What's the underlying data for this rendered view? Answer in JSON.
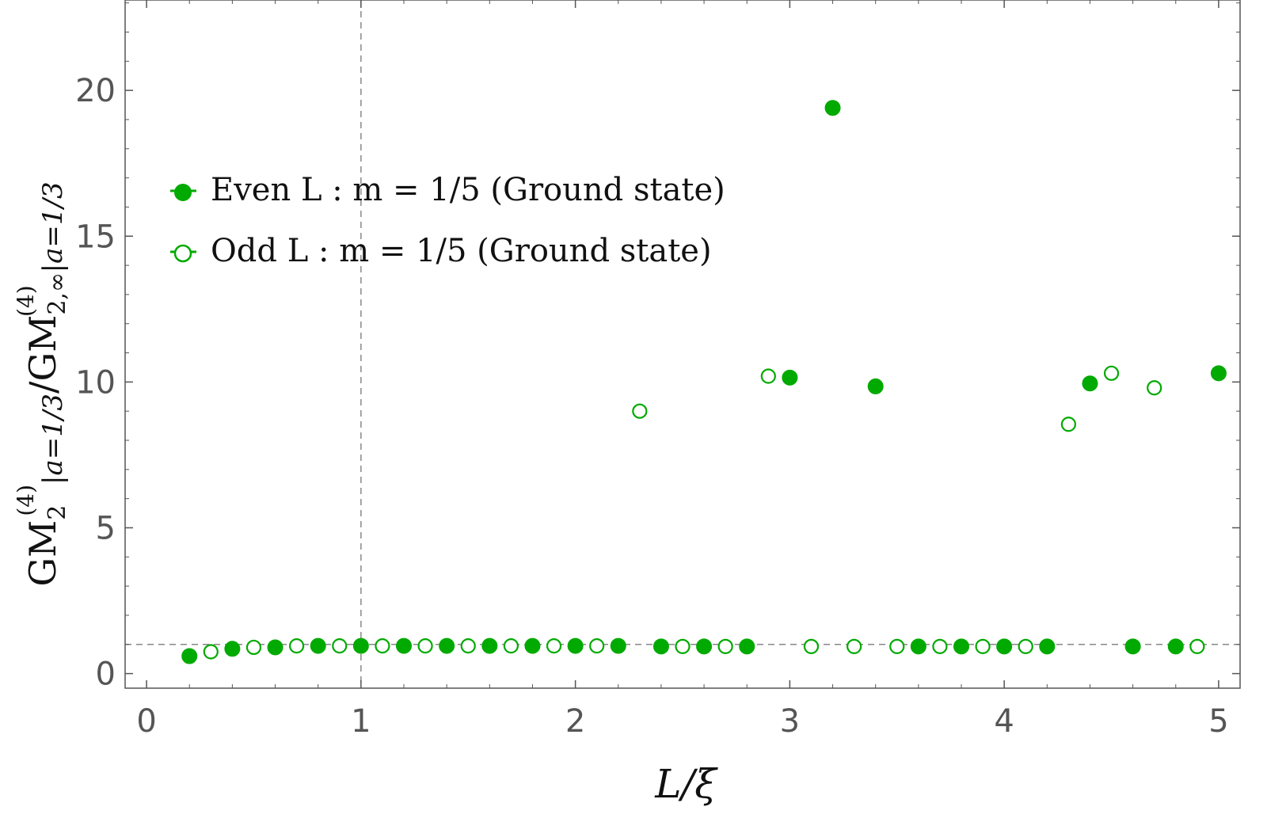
{
  "chart_data": {
    "type": "scatter",
    "xlabel": "L/ξ",
    "ylabel_parts": {
      "base": "GM",
      "sub": "2",
      "sup": "(4)",
      "cond1": "|a=1/3",
      "slash": "/GM",
      "sub2": "2,∞",
      "sup2": "(4)",
      "cond2": "|a=1/3"
    },
    "xlim": [
      -0.1,
      5.1
    ],
    "ylim": [
      -0.5,
      23.1
    ],
    "x_ticks": [
      0,
      1,
      2,
      3,
      4,
      5
    ],
    "x_tick_labels": [
      "0",
      "1",
      "2",
      "3",
      "4",
      "5"
    ],
    "y_ticks": [
      0,
      5,
      10,
      15,
      20
    ],
    "y_tick_labels": [
      "0",
      "5",
      "10",
      "15",
      "20"
    ],
    "reference_lines": {
      "vertical_x": 1,
      "horizontal_y": 1
    },
    "legend_position": "upper-left",
    "grid": false,
    "color": "#00aa00",
    "series": [
      {
        "name": "Even L : m = 1/5 (Ground state)",
        "marker": "filled-circle",
        "points": [
          [
            0.2,
            0.6
          ],
          [
            0.4,
            0.85
          ],
          [
            0.6,
            0.9
          ],
          [
            0.8,
            0.95
          ],
          [
            1.0,
            0.95
          ],
          [
            1.2,
            0.95
          ],
          [
            1.4,
            0.95
          ],
          [
            1.6,
            0.95
          ],
          [
            1.8,
            0.95
          ],
          [
            2.0,
            0.95
          ],
          [
            2.2,
            0.95
          ],
          [
            2.4,
            0.93
          ],
          [
            2.6,
            0.93
          ],
          [
            2.8,
            0.93
          ],
          [
            3.0,
            10.15
          ],
          [
            3.2,
            19.4
          ],
          [
            3.4,
            9.85
          ],
          [
            3.6,
            0.93
          ],
          [
            3.8,
            0.93
          ],
          [
            4.0,
            0.93
          ],
          [
            4.2,
            0.93
          ],
          [
            4.4,
            9.95
          ],
          [
            4.6,
            0.93
          ],
          [
            4.8,
            0.93
          ],
          [
            5.0,
            10.3
          ]
        ]
      },
      {
        "name": "Odd L : m = 1/5 (Ground state)",
        "marker": "open-circle",
        "points": [
          [
            0.3,
            0.75
          ],
          [
            0.5,
            0.9
          ],
          [
            0.7,
            0.95
          ],
          [
            0.9,
            0.95
          ],
          [
            1.1,
            0.95
          ],
          [
            1.3,
            0.95
          ],
          [
            1.5,
            0.95
          ],
          [
            1.7,
            0.95
          ],
          [
            1.9,
            0.95
          ],
          [
            2.1,
            0.95
          ],
          [
            2.3,
            9.0
          ],
          [
            2.5,
            0.93
          ],
          [
            2.7,
            0.93
          ],
          [
            2.9,
            10.2
          ],
          [
            3.1,
            0.93
          ],
          [
            3.3,
            0.93
          ],
          [
            3.5,
            0.93
          ],
          [
            3.7,
            0.93
          ],
          [
            3.9,
            0.93
          ],
          [
            4.1,
            0.93
          ],
          [
            4.3,
            8.55
          ],
          [
            4.5,
            10.3
          ],
          [
            4.7,
            9.8
          ],
          [
            4.9,
            0.93
          ]
        ]
      }
    ]
  }
}
